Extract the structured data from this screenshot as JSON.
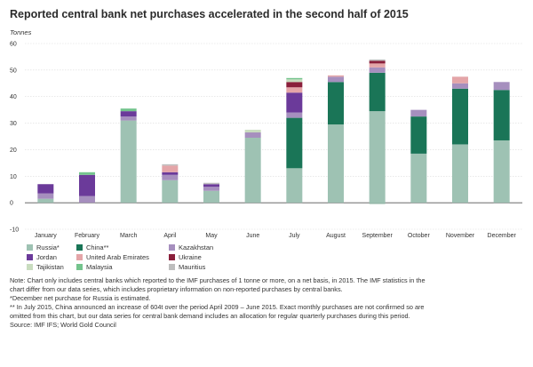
{
  "chart_data": {
    "type": "bar",
    "stacked": true,
    "title": "Reported central bank net purchases accelerated in the second half of 2015",
    "ylabel": "Tonnes",
    "xlabel": "",
    "ylim": [
      -10,
      60
    ],
    "yticks": [
      -10,
      0,
      10,
      20,
      30,
      40,
      50,
      60
    ],
    "grid": true,
    "categories": [
      "January",
      "February",
      "March",
      "April",
      "May",
      "June",
      "July",
      "August",
      "September",
      "October",
      "November",
      "December"
    ],
    "series": [
      {
        "name": "Russia*",
        "color": "#9ec2b3",
        "values": [
          1.5,
          0,
          31,
          8.5,
          4.5,
          24.5,
          13,
          29.5,
          34.5,
          18.5,
          22,
          23.5
        ]
      },
      {
        "name": "China**",
        "color": "#1a7557",
        "values": [
          0,
          0,
          0,
          0,
          0,
          0,
          19,
          16,
          14.5,
          14,
          21,
          19
        ]
      },
      {
        "name": "Kazakhstan",
        "color": "#a68fbe",
        "values": [
          2,
          2.5,
          1.5,
          2,
          1.5,
          2,
          2,
          2,
          2,
          2.5,
          2,
          3
        ]
      },
      {
        "name": "Jordan",
        "color": "#6b3a9a",
        "values": [
          3.5,
          8,
          2,
          1,
          1,
          0,
          7.5,
          0,
          0,
          0,
          0,
          0
        ]
      },
      {
        "name": "United Arab Emirates",
        "color": "#e4a5a8",
        "values": [
          0,
          0,
          0,
          2.5,
          0,
          0,
          2,
          0.5,
          1.5,
          0,
          2.5,
          0
        ]
      },
      {
        "name": "Ukraine",
        "color": "#8a1f3b",
        "values": [
          0,
          0,
          0,
          0,
          0,
          0,
          2,
          0,
          1,
          0,
          0,
          0
        ]
      },
      {
        "name": "Tajikistan",
        "color": "#c9dcbf",
        "values": [
          0,
          0,
          0,
          0,
          0,
          1,
          1,
          0,
          0,
          0,
          0,
          0
        ]
      },
      {
        "name": "Malaysia",
        "color": "#74c48d",
        "values": [
          0,
          1,
          1,
          0,
          0,
          0,
          0.5,
          0,
          0,
          0,
          0,
          0
        ]
      },
      {
        "name": "Mauritius",
        "color": "#bdbdbd",
        "values": [
          0,
          0,
          0,
          0.5,
          0.5,
          0,
          0,
          0,
          0.5,
          0,
          0,
          0
        ]
      }
    ],
    "negative_values": {
      "Russia*": [
        0,
        0,
        0,
        0,
        0,
        0,
        0,
        0,
        -0.5,
        0,
        0,
        0
      ]
    },
    "legend_position": "bottom-left"
  },
  "notes": [
    "Note: Chart only includes central banks which reported to the IMF purchases of 1 tonne or more, on a net basis, in 2015. The IMF statistics in the",
    "chart differ from our data series, which includes proprietary information on non-reported purchases by central banks.",
    "*December net purchase for Russia is estimated.",
    "** In July 2015, China announced an increase of 604t over the period April 2009 – June 2015. Exact monthly purchases are not confirmed so are",
    "omitted from this chart, but our data series for central bank demand includes an allocation for regular quarterly purchases during this period.",
    "Source: IMF IFS; World Gold Council"
  ]
}
